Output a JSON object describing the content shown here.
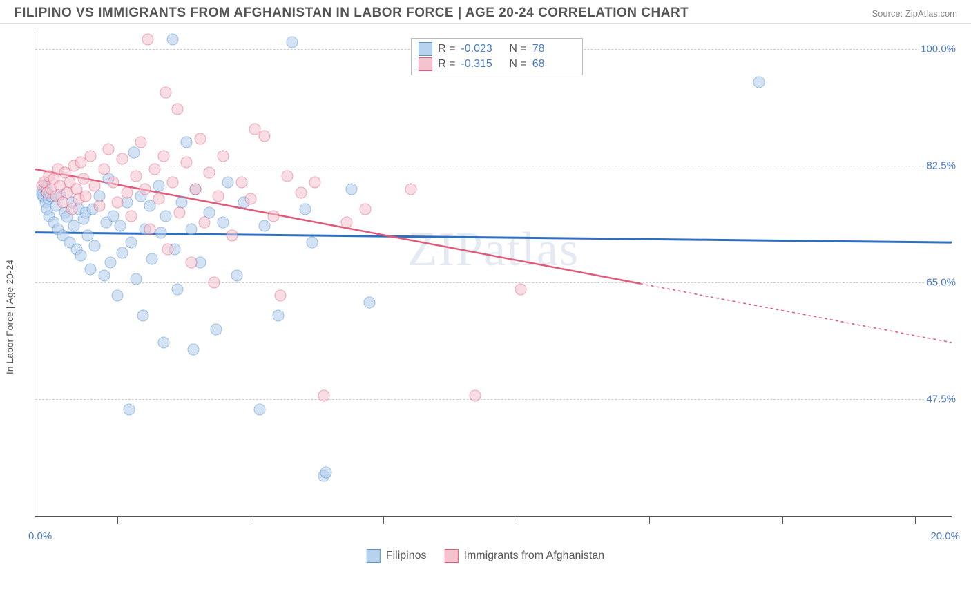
{
  "header": {
    "title": "FILIPINO VS IMMIGRANTS FROM AFGHANISTAN IN LABOR FORCE | AGE 20-24 CORRELATION CHART",
    "source": "Source: ZipAtlas.com"
  },
  "chart": {
    "type": "scatter",
    "watermark": "ZIPatlas",
    "y_axis": {
      "title": "In Labor Force | Age 20-24",
      "min": 30.0,
      "max": 102.5,
      "gridlines": [
        47.5,
        65.0,
        82.5,
        100.0
      ],
      "labels": [
        "47.5%",
        "65.0%",
        "82.5%",
        "100.0%"
      ],
      "label_color": "#4a7bc8",
      "grid_color": "#cccccc"
    },
    "x_axis": {
      "min": 0.0,
      "max": 20.0,
      "tick_positions": [
        1.8,
        4.7,
        7.6,
        10.5,
        13.4,
        16.3,
        19.2
      ],
      "left_label": "0.0%",
      "right_label": "20.0%",
      "label_color": "#4a7bc8"
    },
    "series": [
      {
        "name": "Filipinos",
        "fill": "#b6d2ee",
        "stroke": "#5a94d0",
        "fill_opacity": 0.6,
        "trend": {
          "y_at_xmin": 72.5,
          "y_at_xmax": 71.0,
          "color": "#2f6fbf",
          "width": 3,
          "dash_from_x": null
        },
        "stats": {
          "R": "-0.023",
          "N": "78"
        },
        "points": [
          [
            0.15,
            78.8
          ],
          [
            0.15,
            78.2
          ],
          [
            0.18,
            77.9
          ],
          [
            0.2,
            79.5
          ],
          [
            0.22,
            77.0
          ],
          [
            0.25,
            79.0
          ],
          [
            0.25,
            76.0
          ],
          [
            0.28,
            77.5
          ],
          [
            0.3,
            75.0
          ],
          [
            0.35,
            78.0
          ],
          [
            0.4,
            74.0
          ],
          [
            0.45,
            76.5
          ],
          [
            0.5,
            73.0
          ],
          [
            0.55,
            78.2
          ],
          [
            0.6,
            72.0
          ],
          [
            0.65,
            75.5
          ],
          [
            0.7,
            74.8
          ],
          [
            0.75,
            71.0
          ],
          [
            0.8,
            77.0
          ],
          [
            0.85,
            73.5
          ],
          [
            0.9,
            70.0
          ],
          [
            0.95,
            76.0
          ],
          [
            1.0,
            69.0
          ],
          [
            1.05,
            74.5
          ],
          [
            1.1,
            75.5
          ],
          [
            1.15,
            72.0
          ],
          [
            1.2,
            67.0
          ],
          [
            1.25,
            76.0
          ],
          [
            1.3,
            70.5
          ],
          [
            1.4,
            78.0
          ],
          [
            1.5,
            66.0
          ],
          [
            1.55,
            74.0
          ],
          [
            1.6,
            80.5
          ],
          [
            1.65,
            68.0
          ],
          [
            1.7,
            75.0
          ],
          [
            1.8,
            63.0
          ],
          [
            1.85,
            73.5
          ],
          [
            1.9,
            69.5
          ],
          [
            2.0,
            77.0
          ],
          [
            2.05,
            46.0
          ],
          [
            2.1,
            71.0
          ],
          [
            2.15,
            84.5
          ],
          [
            2.2,
            65.5
          ],
          [
            2.3,
            78.0
          ],
          [
            2.35,
            60.0
          ],
          [
            2.4,
            73.0
          ],
          [
            2.5,
            76.5
          ],
          [
            2.55,
            68.5
          ],
          [
            2.7,
            79.5
          ],
          [
            2.75,
            72.5
          ],
          [
            2.8,
            56.0
          ],
          [
            2.85,
            75.0
          ],
          [
            3.0,
            101.5
          ],
          [
            3.05,
            70.0
          ],
          [
            3.1,
            64.0
          ],
          [
            3.2,
            77.0
          ],
          [
            3.3,
            86.0
          ],
          [
            3.4,
            73.0
          ],
          [
            3.45,
            55.0
          ],
          [
            3.5,
            79.0
          ],
          [
            3.6,
            68.0
          ],
          [
            3.8,
            75.5
          ],
          [
            3.95,
            58.0
          ],
          [
            4.1,
            74.0
          ],
          [
            4.2,
            80.0
          ],
          [
            4.4,
            66.0
          ],
          [
            4.55,
            77.0
          ],
          [
            4.9,
            46.0
          ],
          [
            5.0,
            73.5
          ],
          [
            5.3,
            60.0
          ],
          [
            5.6,
            101.0
          ],
          [
            5.9,
            76.0
          ],
          [
            6.05,
            71.0
          ],
          [
            6.3,
            36.0
          ],
          [
            6.35,
            36.5
          ],
          [
            6.9,
            79.0
          ],
          [
            7.3,
            62.0
          ],
          [
            15.8,
            95.0
          ]
        ]
      },
      {
        "name": "Immigrants from Afghanistan",
        "fill": "#f5c3ce",
        "stroke": "#e05a7a",
        "fill_opacity": 0.55,
        "trend": {
          "y_at_xmin": 82.0,
          "y_at_xmax": 56.0,
          "color": "#e05a7a",
          "width": 2.5,
          "dash_from_x": 13.2
        },
        "stats": {
          "R": "-0.315",
          "N": "68"
        },
        "points": [
          [
            0.15,
            79.5
          ],
          [
            0.2,
            80.0
          ],
          [
            0.25,
            78.5
          ],
          [
            0.3,
            81.0
          ],
          [
            0.35,
            79.0
          ],
          [
            0.4,
            80.5
          ],
          [
            0.45,
            78.0
          ],
          [
            0.5,
            82.0
          ],
          [
            0.55,
            79.5
          ],
          [
            0.6,
            77.0
          ],
          [
            0.65,
            81.5
          ],
          [
            0.7,
            78.5
          ],
          [
            0.75,
            80.0
          ],
          [
            0.8,
            76.0
          ],
          [
            0.85,
            82.5
          ],
          [
            0.9,
            79.0
          ],
          [
            0.95,
            77.5
          ],
          [
            1.0,
            83.0
          ],
          [
            1.05,
            80.5
          ],
          [
            1.1,
            78.0
          ],
          [
            1.2,
            84.0
          ],
          [
            1.3,
            79.5
          ],
          [
            1.4,
            76.5
          ],
          [
            1.5,
            82.0
          ],
          [
            1.6,
            85.0
          ],
          [
            1.7,
            80.0
          ],
          [
            1.8,
            77.0
          ],
          [
            1.9,
            83.5
          ],
          [
            2.0,
            78.5
          ],
          [
            2.1,
            75.0
          ],
          [
            2.2,
            81.0
          ],
          [
            2.3,
            86.0
          ],
          [
            2.4,
            79.0
          ],
          [
            2.45,
            101.5
          ],
          [
            2.5,
            73.0
          ],
          [
            2.6,
            82.0
          ],
          [
            2.7,
            77.5
          ],
          [
            2.8,
            84.0
          ],
          [
            2.85,
            93.5
          ],
          [
            2.9,
            70.0
          ],
          [
            3.0,
            80.0
          ],
          [
            3.1,
            91.0
          ],
          [
            3.15,
            75.5
          ],
          [
            3.3,
            83.0
          ],
          [
            3.4,
            68.0
          ],
          [
            3.5,
            79.0
          ],
          [
            3.6,
            86.5
          ],
          [
            3.7,
            74.0
          ],
          [
            3.8,
            81.5
          ],
          [
            3.9,
            65.0
          ],
          [
            4.0,
            78.0
          ],
          [
            4.1,
            84.0
          ],
          [
            4.3,
            72.0
          ],
          [
            4.5,
            80.0
          ],
          [
            4.7,
            77.5
          ],
          [
            4.8,
            88.0
          ],
          [
            5.0,
            87.0
          ],
          [
            5.2,
            75.0
          ],
          [
            5.35,
            63.0
          ],
          [
            5.5,
            81.0
          ],
          [
            5.8,
            78.5
          ],
          [
            6.1,
            80.0
          ],
          [
            6.3,
            48.0
          ],
          [
            6.8,
            74.0
          ],
          [
            7.2,
            76.0
          ],
          [
            8.2,
            79.0
          ],
          [
            9.6,
            48.0
          ],
          [
            10.6,
            64.0
          ]
        ]
      }
    ],
    "stat_legend": {
      "rows": [
        {
          "swatch_fill": "#b6d2ee",
          "swatch_stroke": "#5a94d0",
          "r_label": "R =",
          "r_val": "-0.023",
          "n_label": "N =",
          "n_val": "78"
        },
        {
          "swatch_fill": "#f5c3ce",
          "swatch_stroke": "#e05a7a",
          "r_label": "R =",
          "r_val": "-0.315",
          "n_label": "N =",
          "n_val": "68"
        }
      ]
    },
    "bottom_legend": [
      {
        "swatch_fill": "#b6d2ee",
        "swatch_stroke": "#5a94d0",
        "label": "Filipinos"
      },
      {
        "swatch_fill": "#f5c3ce",
        "swatch_stroke": "#e05a7a",
        "label": "Immigrants from Afghanistan"
      }
    ]
  }
}
